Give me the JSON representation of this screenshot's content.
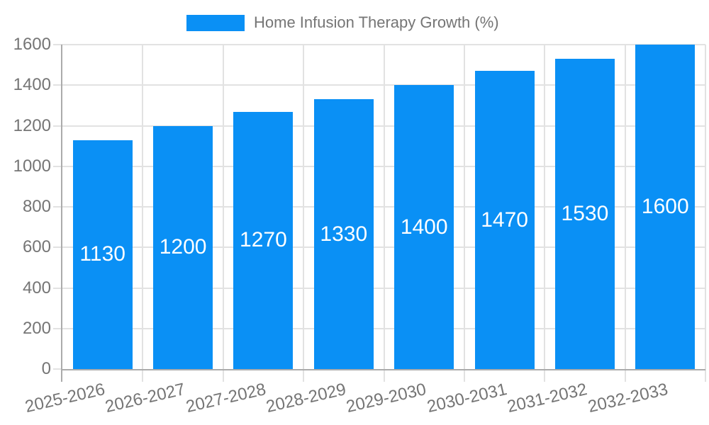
{
  "legend": {
    "label": "Home Infusion Therapy Growth (%)"
  },
  "chart_data": {
    "type": "bar",
    "title": "Home Infusion Therapy Growth (%)",
    "categories": [
      "2025-2026",
      "2026-2027",
      "2027-2028",
      "2028-2029",
      "2029-2030",
      "2030-2031",
      "2031-2032",
      "2032-2033"
    ],
    "series": [
      {
        "name": "Home Infusion Therapy Growth (%)",
        "values": [
          1130,
          1200,
          1270,
          1330,
          1400,
          1470,
          1530,
          1600
        ]
      }
    ],
    "values": [
      1130,
      1200,
      1270,
      1330,
      1400,
      1470,
      1530,
      1600
    ],
    "bar_value_labels": [
      "1130",
      "1200",
      "1270",
      "1330",
      "1400",
      "1470",
      "1530",
      "1600"
    ],
    "xlabel": "",
    "ylabel": "",
    "ylim": [
      0,
      1600
    ],
    "yticks": [
      0,
      200,
      400,
      600,
      800,
      1000,
      1200,
      1400,
      1600
    ],
    "grid": true,
    "legend_position": "top-center",
    "bar_color": "#0a90f5",
    "bar_label_color": "#ffffff",
    "axis_text_color": "#757575",
    "gridline_color": "#e2e2e2",
    "axis_line_color": "#ababab"
  }
}
